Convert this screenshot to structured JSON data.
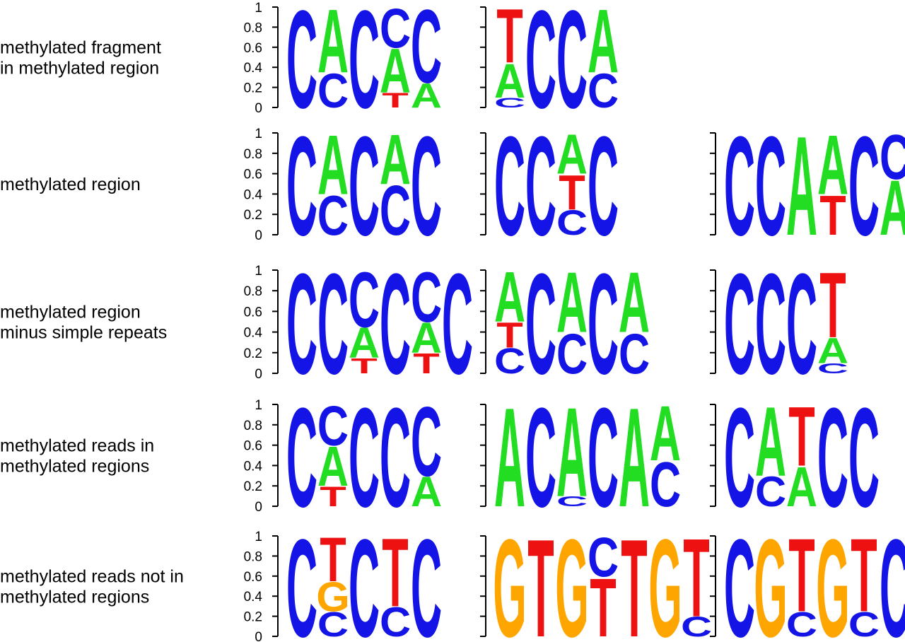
{
  "colors": {
    "A": "#22dd22",
    "C": "#1414e6",
    "G": "#ffa500",
    "T": "#ee1111"
  },
  "y_ticks": [
    "1",
    "0.8",
    "0.6",
    "0.4",
    "0.2",
    "0"
  ],
  "chart_data": [
    {
      "type": "sequence-logo",
      "row_label": [
        "methylated fragment",
        "in methylated region"
      ],
      "ylim": [
        0,
        1
      ],
      "motifs": [
        [
          [
            {
              "base": "C",
              "p": 1.0
            }
          ],
          [
            {
              "base": "A",
              "p": 0.65
            },
            {
              "base": "C",
              "p": 0.35
            }
          ],
          [
            {
              "base": "C",
              "p": 1.0
            }
          ],
          [
            {
              "base": "C",
              "p": 0.4
            },
            {
              "base": "A",
              "p": 0.45
            },
            {
              "base": "T",
              "p": 0.15
            }
          ],
          [
            {
              "base": "C",
              "p": 0.75
            },
            {
              "base": "A",
              "p": 0.25
            }
          ]
        ],
        [
          [
            {
              "base": "T",
              "p": 0.55
            },
            {
              "base": "A",
              "p": 0.35
            },
            {
              "base": "C",
              "p": 0.1
            }
          ],
          [
            {
              "base": "C",
              "p": 1.0
            }
          ],
          [
            {
              "base": "C",
              "p": 1.0
            }
          ],
          [
            {
              "base": "A",
              "p": 0.65
            },
            {
              "base": "C",
              "p": 0.35
            }
          ]
        ]
      ]
    },
    {
      "type": "sequence-logo",
      "row_label": [
        "methylated region"
      ],
      "ylim": [
        0,
        1
      ],
      "motifs": [
        [
          [
            {
              "base": "C",
              "p": 1.0
            }
          ],
          [
            {
              "base": "A",
              "p": 0.6
            },
            {
              "base": "C",
              "p": 0.4
            }
          ],
          [
            {
              "base": "C",
              "p": 1.0
            }
          ],
          [
            {
              "base": "A",
              "p": 0.5
            },
            {
              "base": "C",
              "p": 0.5
            }
          ],
          [
            {
              "base": "C",
              "p": 1.0
            }
          ]
        ],
        [
          [
            {
              "base": "C",
              "p": 1.0
            }
          ],
          [
            {
              "base": "C",
              "p": 1.0
            }
          ],
          [
            {
              "base": "A",
              "p": 0.4
            },
            {
              "base": "T",
              "p": 0.35
            },
            {
              "base": "C",
              "p": 0.25
            }
          ],
          [
            {
              "base": "C",
              "p": 1.0
            }
          ]
        ],
        [
          [
            {
              "base": "C",
              "p": 1.0
            }
          ],
          [
            {
              "base": "C",
              "p": 1.0
            }
          ],
          [
            {
              "base": "A",
              "p": 1.0
            }
          ],
          [
            {
              "base": "A",
              "p": 0.6
            },
            {
              "base": "T",
              "p": 0.4
            }
          ],
          [
            {
              "base": "C",
              "p": 1.0
            }
          ],
          [
            {
              "base": "C",
              "p": 0.45
            },
            {
              "base": "A",
              "p": 0.55
            }
          ]
        ]
      ]
    },
    {
      "type": "sequence-logo",
      "row_label": [
        "methylated region",
        "minus simple repeats"
      ],
      "ylim": [
        0,
        1
      ],
      "motifs": [
        [
          [
            {
              "base": "C",
              "p": 1.0
            }
          ],
          [
            {
              "base": "C",
              "p": 1.0
            }
          ],
          [
            {
              "base": "C",
              "p": 0.55
            },
            {
              "base": "A",
              "p": 0.3
            },
            {
              "base": "T",
              "p": 0.15
            }
          ],
          [
            {
              "base": "C",
              "p": 1.0
            }
          ],
          [
            {
              "base": "C",
              "p": 0.5
            },
            {
              "base": "A",
              "p": 0.3
            },
            {
              "base": "T",
              "p": 0.2
            }
          ],
          [
            {
              "base": "C",
              "p": 1.0
            }
          ]
        ],
        [
          [
            {
              "base": "A",
              "p": 0.5
            },
            {
              "base": "T",
              "p": 0.25
            },
            {
              "base": "C",
              "p": 0.25
            }
          ],
          [
            {
              "base": "C",
              "p": 1.0
            }
          ],
          [
            {
              "base": "A",
              "p": 0.6
            },
            {
              "base": "C",
              "p": 0.4
            }
          ],
          [
            {
              "base": "C",
              "p": 1.0
            }
          ],
          [
            {
              "base": "A",
              "p": 0.6
            },
            {
              "base": "C",
              "p": 0.4
            }
          ]
        ],
        [
          [
            {
              "base": "C",
              "p": 1.0
            }
          ],
          [
            {
              "base": "C",
              "p": 1.0
            }
          ],
          [
            {
              "base": "C",
              "p": 1.0
            }
          ],
          [
            {
              "base": "T",
              "p": 0.65
            },
            {
              "base": "A",
              "p": 0.25
            },
            {
              "base": "C",
              "p": 0.1
            }
          ]
        ]
      ]
    },
    {
      "type": "sequence-logo",
      "row_label": [
        "methylated reads in",
        "methylated regions"
      ],
      "ylim": [
        0,
        1
      ],
      "motifs": [
        [
          [
            {
              "base": "C",
              "p": 1.0
            }
          ],
          [
            {
              "base": "C",
              "p": 0.4
            },
            {
              "base": "A",
              "p": 0.4
            },
            {
              "base": "T",
              "p": 0.2
            }
          ],
          [
            {
              "base": "C",
              "p": 1.0
            }
          ],
          [
            {
              "base": "C",
              "p": 1.0
            }
          ],
          [
            {
              "base": "C",
              "p": 0.7
            },
            {
              "base": "A",
              "p": 0.3
            }
          ]
        ],
        [
          [
            {
              "base": "A",
              "p": 1.0
            }
          ],
          [
            {
              "base": "C",
              "p": 1.0
            }
          ],
          [
            {
              "base": "A",
              "p": 0.9
            },
            {
              "base": "C",
              "p": 0.1
            }
          ],
          [
            {
              "base": "C",
              "p": 1.0
            }
          ],
          [
            {
              "base": "A",
              "p": 1.0
            }
          ],
          [
            {
              "base": "A",
              "p": 0.55
            },
            {
              "base": "C",
              "p": 0.45
            }
          ]
        ],
        [
          [
            {
              "base": "C",
              "p": 1.0
            }
          ],
          [
            {
              "base": "A",
              "p": 0.7
            },
            {
              "base": "C",
              "p": 0.3
            }
          ],
          [
            {
              "base": "T",
              "p": 0.6
            },
            {
              "base": "A",
              "p": 0.4
            }
          ],
          [
            {
              "base": "C",
              "p": 1.0
            }
          ],
          [
            {
              "base": "C",
              "p": 1.0
            }
          ]
        ]
      ]
    },
    {
      "type": "sequence-logo",
      "row_label": [
        "methylated reads not in",
        "methylated regions"
      ],
      "ylim": [
        0,
        1
      ],
      "motifs": [
        [
          [
            {
              "base": "C",
              "p": 1.0
            }
          ],
          [
            {
              "base": "T",
              "p": 0.45
            },
            {
              "base": "G",
              "p": 0.3
            },
            {
              "base": "C",
              "p": 0.25
            }
          ],
          [
            {
              "base": "C",
              "p": 1.0
            }
          ],
          [
            {
              "base": "T",
              "p": 0.7
            },
            {
              "base": "C",
              "p": 0.3
            }
          ],
          [
            {
              "base": "C",
              "p": 1.0
            }
          ]
        ],
        [
          [
            {
              "base": "G",
              "p": 1.0
            }
          ],
          [
            {
              "base": "T",
              "p": 1.0
            }
          ],
          [
            {
              "base": "G",
              "p": 1.0
            }
          ],
          [
            {
              "base": "C",
              "p": 0.4
            },
            {
              "base": "T",
              "p": 0.6
            }
          ],
          [
            {
              "base": "T",
              "p": 1.0
            }
          ],
          [
            {
              "base": "G",
              "p": 1.0
            }
          ],
          [
            {
              "base": "T",
              "p": 0.8
            },
            {
              "base": "C",
              "p": 0.2
            }
          ]
        ],
        [
          [
            {
              "base": "C",
              "p": 1.0
            }
          ],
          [
            {
              "base": "G",
              "p": 1.0
            }
          ],
          [
            {
              "base": "T",
              "p": 0.75
            },
            {
              "base": "C",
              "p": 0.25
            }
          ],
          [
            {
              "base": "G",
              "p": 1.0
            }
          ],
          [
            {
              "base": "T",
              "p": 0.75
            },
            {
              "base": "C",
              "p": 0.25
            }
          ],
          [
            {
              "base": "C",
              "p": 1.0
            }
          ]
        ]
      ]
    }
  ]
}
